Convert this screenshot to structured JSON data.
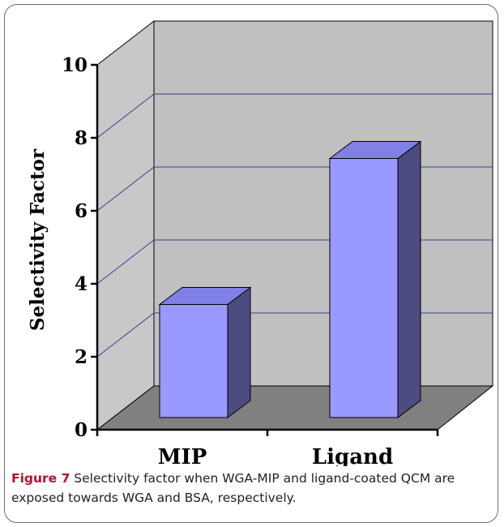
{
  "chart_data": {
    "type": "bar",
    "style": "3d-column",
    "categories": [
      "MIP",
      "Ligand"
    ],
    "series": [
      {
        "values": [
          3.1,
          7.1
        ]
      }
    ],
    "title": "",
    "xlabel": "",
    "ylabel": "Selectivity Factor",
    "ylim": [
      0,
      10
    ],
    "yticks": [
      "0",
      "2",
      "4",
      "6",
      "8",
      "10"
    ],
    "grid": true,
    "legend": "none",
    "colors": {
      "bar_front": "#9999ff",
      "bar_top": "#8080e6",
      "bar_side": "#4c4c80",
      "back_wall": "#c0c0c0",
      "side_wall": "#c8c8c8",
      "floor": "#808080",
      "gridline": "#3d3d8f"
    }
  },
  "caption": {
    "label": "Figure 7",
    "text": " Selectivity factor when WGA-MIP and ligand-coated QCM are exposed towards WGA and BSA, respectively.",
    "label_color": "#b5122a"
  }
}
